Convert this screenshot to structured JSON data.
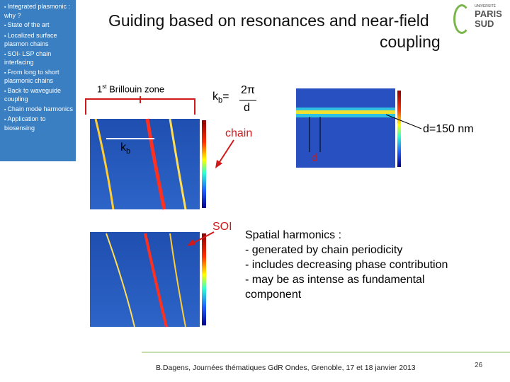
{
  "sidebar": {
    "items": [
      "Integrated plasmonic : why ?",
      "State of the art",
      "Localized surface plasmon chains",
      "SOI- LSP chain interfacing",
      "From long to short plasmonic chains",
      "Back to waveguide coupling",
      "Chain mode harmonics",
      "Application to biosensing"
    ]
  },
  "header": {
    "title_line1": "Guiding based on resonances and near-field",
    "title_line2": "coupling",
    "logo_top": "UNIVERSITÉ",
    "logo_main1": "PARIS",
    "logo_main2": "SUD"
  },
  "figure": {
    "zone_ordinal": "1",
    "zone_suffix": "st",
    "zone_text": "Brillouin zone",
    "kb_main": "k",
    "kb_sub": "b",
    "formula_equals": "=",
    "formula_numerator": "2π",
    "formula_denominator": "d",
    "chain_label": "chain",
    "period_label": "d=150 nm",
    "d_label": "d",
    "soi_label": "SOI"
  },
  "body": {
    "heading": "Spatial harmonics :",
    "bullets": [
      "- generated by chain periodicity",
      "- includes decreasing phase contribution",
      "- may be as intense as fundamental",
      "component"
    ]
  },
  "footer": {
    "citation": "B.Dagens, Journées thématiques GdR Ondes, Grenoble, 17 et 18 janvier 2013",
    "page_number": "26"
  }
}
